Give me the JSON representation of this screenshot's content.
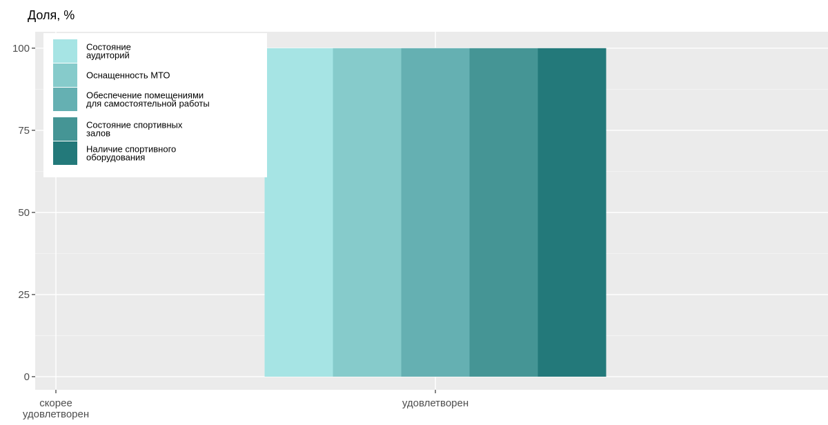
{
  "chart_data": {
    "type": "bar",
    "title": "",
    "ylabel": "Доля, %",
    "xlabel": "",
    "categories": [
      "скорее\nудовлетворен",
      "удовлетворен"
    ],
    "ylim": [
      -4,
      105
    ],
    "yticks": [
      0,
      25,
      50,
      75,
      100
    ],
    "grid": true,
    "legend_position": "top-left",
    "series": [
      {
        "name": "Состояние\nаудиторий",
        "color": "#a6e4e4",
        "values": [
          0,
          100
        ]
      },
      {
        "name": "Оснащенность МТО",
        "color": "#86cbcb",
        "values": [
          0,
          100
        ]
      },
      {
        "name": "Обеспечение помещениями\nдля самостоятельной работы",
        "color": "#65b0b2",
        "values": [
          0,
          100
        ]
      },
      {
        "name": "Состояние спортивных\nзалов",
        "color": "#459595",
        "values": [
          0,
          100
        ]
      },
      {
        "name": "Наличие спортивного\nоборудования",
        "color": "#23797a",
        "values": [
          0,
          100
        ]
      }
    ]
  }
}
